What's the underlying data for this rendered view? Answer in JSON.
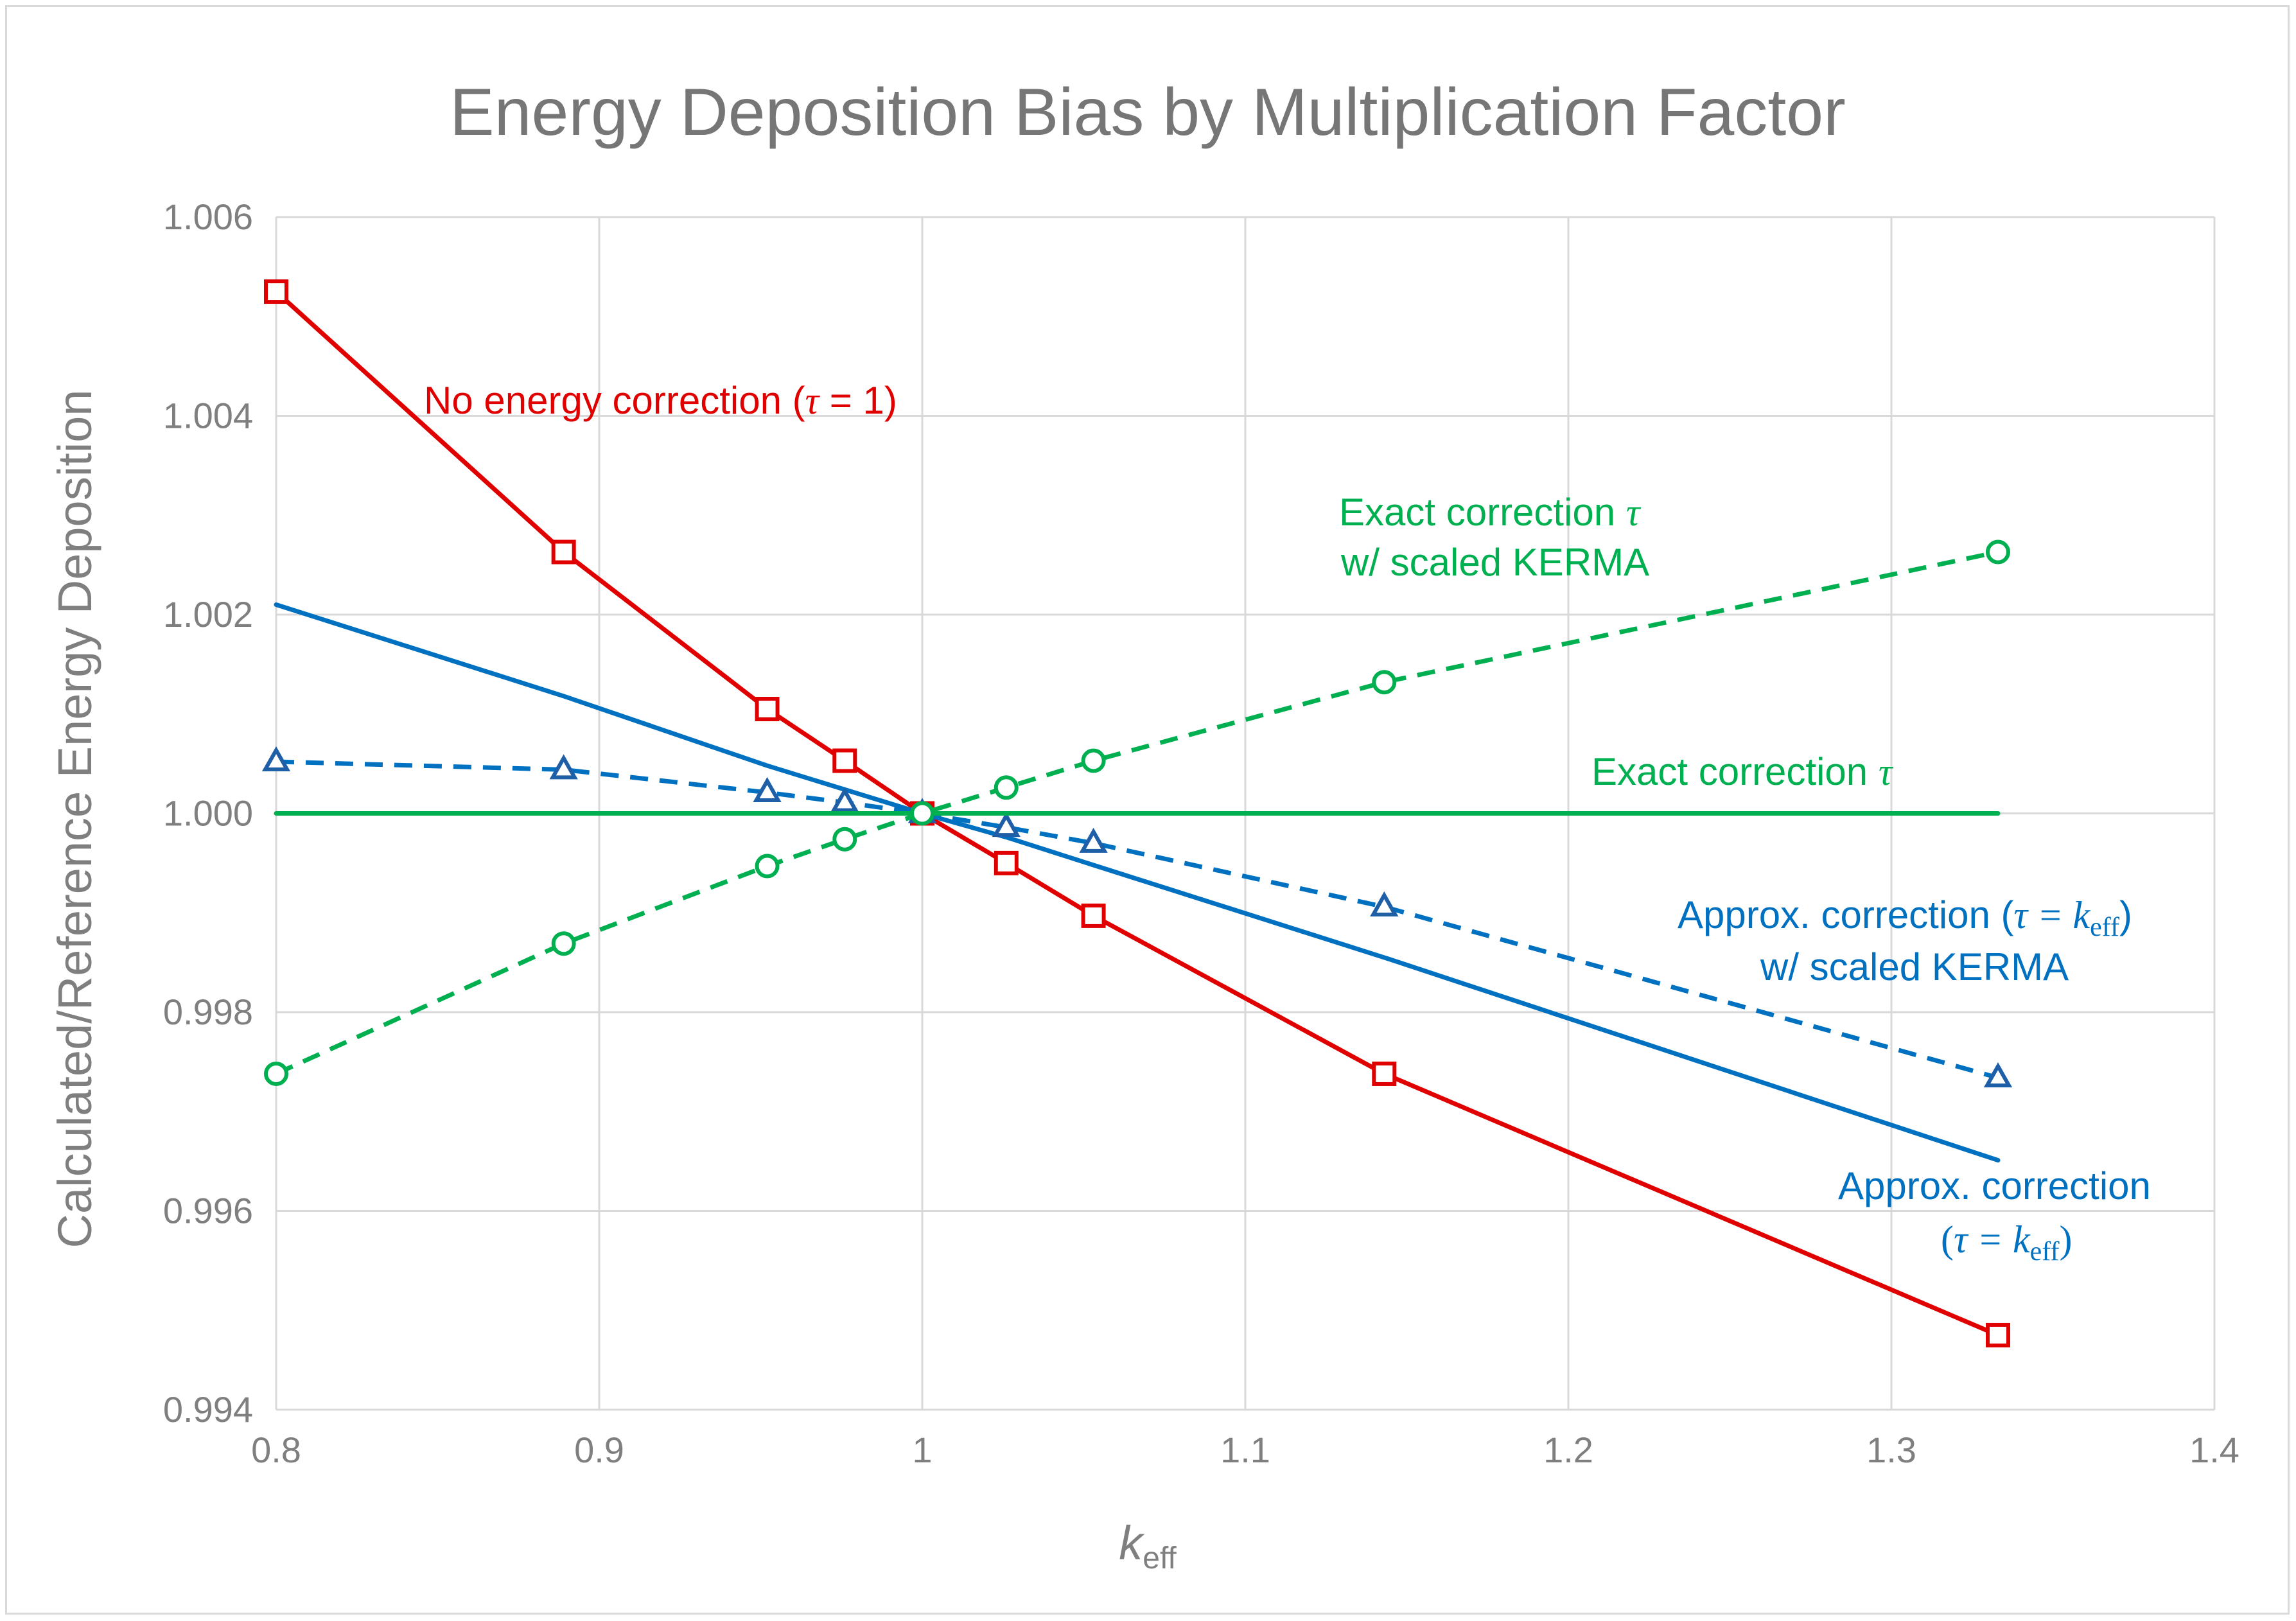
{
  "chart_data": {
    "type": "line",
    "title": "Energy Deposition Bias by Multiplication Factor",
    "xlabel": {
      "main": "k",
      "sub": "eff"
    },
    "ylabel": "Calculated/Reference Energy Deposition",
    "xlim": [
      0.8,
      1.4
    ],
    "ylim": [
      0.994,
      1.006
    ],
    "x_ticks": [
      0.8,
      0.9,
      1.0,
      1.1,
      1.2,
      1.3,
      1.4
    ],
    "x_tick_labels": [
      "0.8",
      "0.9",
      "1",
      "1.1",
      "1.2",
      "1.3",
      "1.4"
    ],
    "y_ticks": [
      0.994,
      0.996,
      0.998,
      1.0,
      1.002,
      1.004,
      1.006
    ],
    "y_tick_labels": [
      "0.994",
      "0.996",
      "0.998",
      "1.000",
      "1.002",
      "1.004",
      "1.006"
    ],
    "grid": true,
    "series": [
      {
        "name": "No energy correction (τ = 1)",
        "color": "#e00000",
        "style": "solid",
        "marker": "square",
        "x": [
          0.8,
          0.889,
          0.952,
          0.976,
          1.0,
          1.026,
          1.053,
          1.143,
          1.333
        ],
        "y": [
          1.00525,
          1.00263,
          1.00105,
          1.00053,
          1.0,
          0.9995,
          0.99897,
          0.99738,
          0.99475
        ]
      },
      {
        "name": "Approx. correction (τ = keff)",
        "color": "#0070c0",
        "style": "solid",
        "marker": "none",
        "x": [
          0.8,
          0.889,
          0.952,
          0.976,
          1.0,
          1.026,
          1.053,
          1.143,
          1.333
        ],
        "y": [
          1.0021,
          1.00118,
          1.00048,
          1.00024,
          1.0,
          0.99976,
          0.99948,
          0.99855,
          0.99651
        ]
      },
      {
        "name": "Approx. correction (τ = keff) w/ scaled KERMA",
        "color": "#0070c0",
        "style": "dashed",
        "marker": "triangle",
        "x": [
          0.8,
          0.889,
          0.952,
          0.976,
          1.0,
          1.026,
          1.053,
          1.143,
          1.333
        ],
        "y": [
          1.00052,
          1.00044,
          1.00021,
          1.00011,
          1.0,
          0.99986,
          0.9997,
          0.99906,
          0.99734
        ]
      },
      {
        "name": "Exact correction τ",
        "color": "#00b050",
        "style": "solid",
        "marker": "none",
        "x": [
          0.8,
          1.333
        ],
        "y": [
          1.0,
          1.0
        ]
      },
      {
        "name": "Exact correction τ w/ scaled KERMA",
        "color": "#00b050",
        "style": "dashed",
        "marker": "circle",
        "x": [
          0.8,
          0.889,
          0.952,
          0.976,
          1.0,
          1.026,
          1.053,
          1.143,
          1.333
        ],
        "y": [
          0.99738,
          0.99869,
          0.99947,
          0.99974,
          1.0,
          1.00026,
          1.00053,
          1.00132,
          1.00263
        ]
      }
    ],
    "annotations": {
      "no_correction": {
        "text": "No energy correction (",
        "symbol": "τ",
        "tail": " = 1)",
        "color": "#e00000"
      },
      "exact_scaled": {
        "line1_text": "Exact correction ",
        "line1_symbol": "τ",
        "line2_text": "w/ scaled KERMA",
        "color": "#00b050"
      },
      "exact": {
        "text": "Exact correction ",
        "symbol": "τ",
        "color": "#00b050"
      },
      "approx_scaled": {
        "line1_text": "Approx. correction (",
        "line1_math": "τ = k",
        "line1_sub": "eff",
        "line1_close": ")",
        "line2_text": "w/ scaled KERMA",
        "color": "#0070c0"
      },
      "approx": {
        "line1_text": "Approx. correction",
        "line2_open": "(",
        "line2_math": "τ = k",
        "line2_sub": "eff",
        "line2_close": ")",
        "color": "#0070c0"
      }
    }
  }
}
